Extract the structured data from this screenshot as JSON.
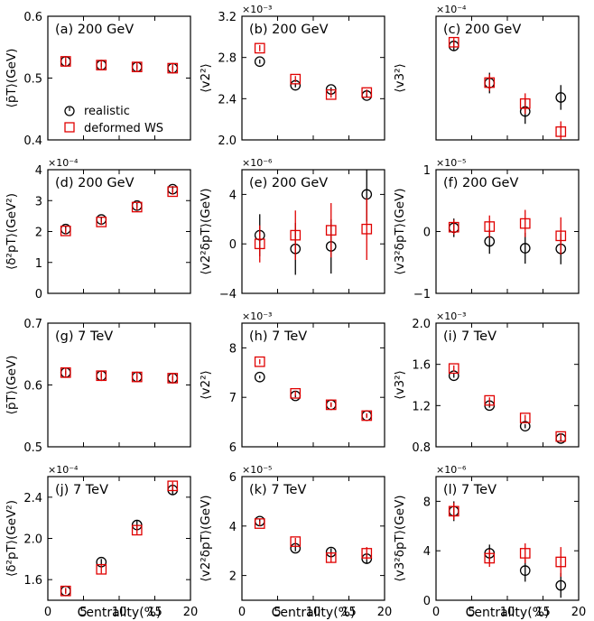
{
  "legend": {
    "realistic": "realistic",
    "deformed": "deformed WS"
  },
  "xlabel": "Centrality(%)",
  "x_ticks": [
    "0",
    "5",
    "10",
    "15",
    "20"
  ],
  "colors": {
    "realistic": "#000000",
    "deformed": "#e00000"
  },
  "chart_data": [
    {
      "type": "scatter",
      "panel": "(a) 200 GeV",
      "ylabel": "⟨p̄T⟩(GeV)",
      "multiplier": "",
      "ylim": [
        0.4,
        0.6
      ],
      "yticks": [
        "0.4",
        "0.5",
        "0.6"
      ],
      "xlim": [
        0,
        20
      ],
      "x": [
        2.5,
        7.5,
        12.5,
        17.5
      ],
      "series": [
        {
          "name": "realistic",
          "values": [
            0.527,
            0.521,
            0.518,
            0.516
          ],
          "err": [
            0.003,
            0.003,
            0.003,
            0.003
          ]
        },
        {
          "name": "deformed WS",
          "values": [
            0.527,
            0.521,
            0.518,
            0.516
          ],
          "err": [
            0.008,
            0.008,
            0.008,
            0.008
          ]
        }
      ]
    },
    {
      "type": "scatter",
      "panel": "(b) 200 GeV",
      "ylabel": "⟨v2²⟩",
      "multiplier": "×10⁻³",
      "ylim": [
        2.0,
        3.2
      ],
      "yticks": [
        "2.0",
        "2.4",
        "2.8",
        "3.2"
      ],
      "xlim": [
        0,
        20
      ],
      "x": [
        2.5,
        7.5,
        12.5,
        17.5
      ],
      "series": [
        {
          "name": "realistic",
          "values": [
            2.76,
            2.53,
            2.49,
            2.43
          ],
          "err": [
            0.02,
            0.02,
            0.02,
            0.02
          ]
        },
        {
          "name": "deformed WS",
          "values": [
            2.89,
            2.59,
            2.44,
            2.46
          ],
          "err": [
            0.03,
            0.03,
            0.03,
            0.03
          ]
        }
      ]
    },
    {
      "type": "scatter",
      "panel": "(c) 200 GeV",
      "ylabel": "⟨v3²⟩",
      "multiplier": "×10⁻⁴",
      "ylim": [
        0,
        3
      ],
      "yticks": [
        "",
        "",
        "",
        ""
      ],
      "xlim": [
        0,
        20
      ],
      "x": [
        2.5,
        7.5,
        12.5,
        17.5
      ],
      "series": [
        {
          "name": "realistic",
          "values": [
            2.28,
            1.38,
            0.69,
            1.03
          ],
          "err": [
            0.1,
            0.25,
            0.3,
            0.3
          ]
        },
        {
          "name": "deformed WS",
          "values": [
            2.37,
            1.39,
            0.88,
            0.2
          ],
          "err": [
            0.1,
            0.2,
            0.25,
            0.25
          ]
        }
      ]
    },
    {
      "type": "scatter",
      "panel": "(d) 200 GeV",
      "ylabel": "⟨δ²pT⟩(GeV²)",
      "multiplier": "×10⁻⁴",
      "ylim": [
        0,
        4
      ],
      "yticks": [
        "0",
        "1",
        "2",
        "3",
        "4"
      ],
      "xlim": [
        0,
        20
      ],
      "x": [
        2.5,
        7.5,
        12.5,
        17.5
      ],
      "series": [
        {
          "name": "realistic",
          "values": [
            2.08,
            2.39,
            2.84,
            3.37
          ],
          "err": [
            0.08,
            0.08,
            0.08,
            0.1
          ]
        },
        {
          "name": "deformed WS",
          "values": [
            2.02,
            2.31,
            2.79,
            3.29
          ],
          "err": [
            0.1,
            0.1,
            0.1,
            0.1
          ]
        }
      ]
    },
    {
      "type": "scatter",
      "panel": "(e) 200 GeV",
      "ylabel": "⟨v2²δpT⟩(GeV)",
      "multiplier": "×10⁻⁶",
      "ylim": [
        -4,
        6
      ],
      "yticks": [
        "−4",
        "0",
        "4"
      ],
      "ytick_values": [
        -4,
        0,
        4
      ],
      "xlim": [
        0,
        20
      ],
      "x": [
        2.5,
        7.5,
        12.5,
        17.5
      ],
      "series": [
        {
          "name": "realistic",
          "values": [
            0.7,
            -0.4,
            -0.2,
            4.0
          ],
          "err": [
            1.7,
            2.1,
            2.2,
            2.2
          ]
        },
        {
          "name": "deformed WS",
          "values": [
            0.0,
            0.7,
            1.1,
            1.2
          ],
          "err": [
            1.5,
            2.0,
            2.2,
            2.5
          ]
        }
      ]
    },
    {
      "type": "scatter",
      "panel": "(f) 200 GeV",
      "ylabel": "⟨v3²δpT⟩(GeV)",
      "multiplier": "×10⁻⁵",
      "ylim": [
        -1,
        1
      ],
      "yticks": [
        "−1",
        "0",
        "1"
      ],
      "ytick_values": [
        -1,
        0,
        1
      ],
      "xlim": [
        0,
        20
      ],
      "x": [
        2.5,
        7.5,
        12.5,
        17.5
      ],
      "series": [
        {
          "name": "realistic",
          "values": [
            0.06,
            -0.16,
            -0.27,
            -0.28
          ],
          "err": [
            0.15,
            0.2,
            0.25,
            0.25
          ]
        },
        {
          "name": "deformed WS",
          "values": [
            0.07,
            0.08,
            0.13,
            -0.07
          ],
          "err": [
            0.12,
            0.18,
            0.22,
            0.3
          ]
        }
      ]
    },
    {
      "type": "scatter",
      "panel": "(g) 7 TeV",
      "ylabel": "⟨p̄T⟩(GeV)",
      "multiplier": "",
      "ylim": [
        0.5,
        0.7
      ],
      "yticks": [
        "0.5",
        "0.6",
        "0.7"
      ],
      "xlim": [
        0,
        20
      ],
      "x": [
        2.5,
        7.5,
        12.5,
        17.5
      ],
      "series": [
        {
          "name": "realistic",
          "values": [
            0.62,
            0.615,
            0.613,
            0.611
          ],
          "err": [
            0.003,
            0.003,
            0.003,
            0.003
          ]
        },
        {
          "name": "deformed WS",
          "values": [
            0.62,
            0.615,
            0.613,
            0.611
          ],
          "err": [
            0.008,
            0.008,
            0.008,
            0.008
          ]
        }
      ]
    },
    {
      "type": "scatter",
      "panel": "(h) 7 TeV",
      "ylabel": "⟨v2²⟩",
      "multiplier": "×10⁻³",
      "ylim": [
        6,
        8.5
      ],
      "yticks": [
        "6",
        "7",
        "8"
      ],
      "xlim": [
        0,
        20
      ],
      "x": [
        2.5,
        7.5,
        12.5,
        17.5
      ],
      "series": [
        {
          "name": "realistic",
          "values": [
            7.41,
            7.03,
            6.85,
            6.63
          ],
          "err": [
            0.03,
            0.03,
            0.03,
            0.03
          ]
        },
        {
          "name": "deformed WS",
          "values": [
            7.72,
            7.08,
            6.85,
            6.63
          ],
          "err": [
            0.05,
            0.05,
            0.05,
            0.05
          ]
        }
      ]
    },
    {
      "type": "scatter",
      "panel": "(i) 7 TeV",
      "ylabel": "⟨v3²⟩",
      "multiplier": "×10⁻³",
      "ylim": [
        0.8,
        2.0
      ],
      "yticks": [
        "0.8",
        "1.2",
        "1.6",
        "2.0"
      ],
      "xlim": [
        0,
        20
      ],
      "x": [
        2.5,
        7.5,
        12.5,
        17.5
      ],
      "series": [
        {
          "name": "realistic",
          "values": [
            1.49,
            1.2,
            1.0,
            0.88
          ],
          "err": [
            0.02,
            0.02,
            0.02,
            0.02
          ]
        },
        {
          "name": "deformed WS",
          "values": [
            1.56,
            1.25,
            1.08,
            0.9
          ],
          "err": [
            0.03,
            0.03,
            0.03,
            0.03
          ]
        }
      ]
    },
    {
      "type": "scatter",
      "panel": "(j) 7 TeV",
      "ylabel": "⟨δ²pT⟩(GeV²)",
      "multiplier": "×10⁻⁴",
      "ylim": [
        1.4,
        2.6
      ],
      "yticks": [
        "1.6",
        "2.0",
        "2.4"
      ],
      "xlim": [
        0,
        20
      ],
      "x": [
        2.5,
        7.5,
        12.5,
        17.5
      ],
      "series": [
        {
          "name": "realistic",
          "values": [
            1.49,
            1.77,
            2.13,
            2.47
          ],
          "err": [
            0.02,
            0.03,
            0.04,
            0.04
          ]
        },
        {
          "name": "deformed WS",
          "values": [
            1.49,
            1.7,
            2.08,
            2.51
          ],
          "err": [
            0.03,
            0.04,
            0.04,
            0.04
          ]
        }
      ]
    },
    {
      "type": "scatter",
      "panel": "(k) 7 TeV",
      "ylabel": "⟨v2²δpT⟩(GeV)",
      "multiplier": "×10⁻⁵",
      "ylim": [
        1,
        6
      ],
      "yticks": [
        "2",
        "4",
        "6"
      ],
      "xlim": [
        0,
        20
      ],
      "x": [
        2.5,
        7.5,
        12.5,
        17.5
      ],
      "series": [
        {
          "name": "realistic",
          "values": [
            4.2,
            3.1,
            2.95,
            2.68
          ],
          "err": [
            0.1,
            0.12,
            0.15,
            0.2
          ]
        },
        {
          "name": "deformed WS",
          "values": [
            4.1,
            3.37,
            2.72,
            2.9
          ],
          "err": [
            0.1,
            0.15,
            0.2,
            0.25
          ]
        }
      ]
    },
    {
      "type": "scatter",
      "panel": "(l) 7 TeV",
      "ylabel": "⟨v3²δpT⟩(GeV)",
      "multiplier": "×10⁻⁶",
      "ylim": [
        0,
        10
      ],
      "yticks": [
        "0",
        "4",
        "8"
      ],
      "xlim": [
        0,
        20
      ],
      "x": [
        2.5,
        7.5,
        12.5,
        17.5
      ],
      "series": [
        {
          "name": "realistic",
          "values": [
            7.2,
            3.8,
            2.4,
            1.2
          ],
          "err": [
            0.8,
            0.7,
            0.9,
            1.0
          ]
        },
        {
          "name": "deformed WS",
          "values": [
            7.2,
            3.4,
            3.8,
            3.1
          ],
          "err": [
            0.7,
            0.7,
            0.8,
            1.2
          ]
        }
      ]
    }
  ]
}
